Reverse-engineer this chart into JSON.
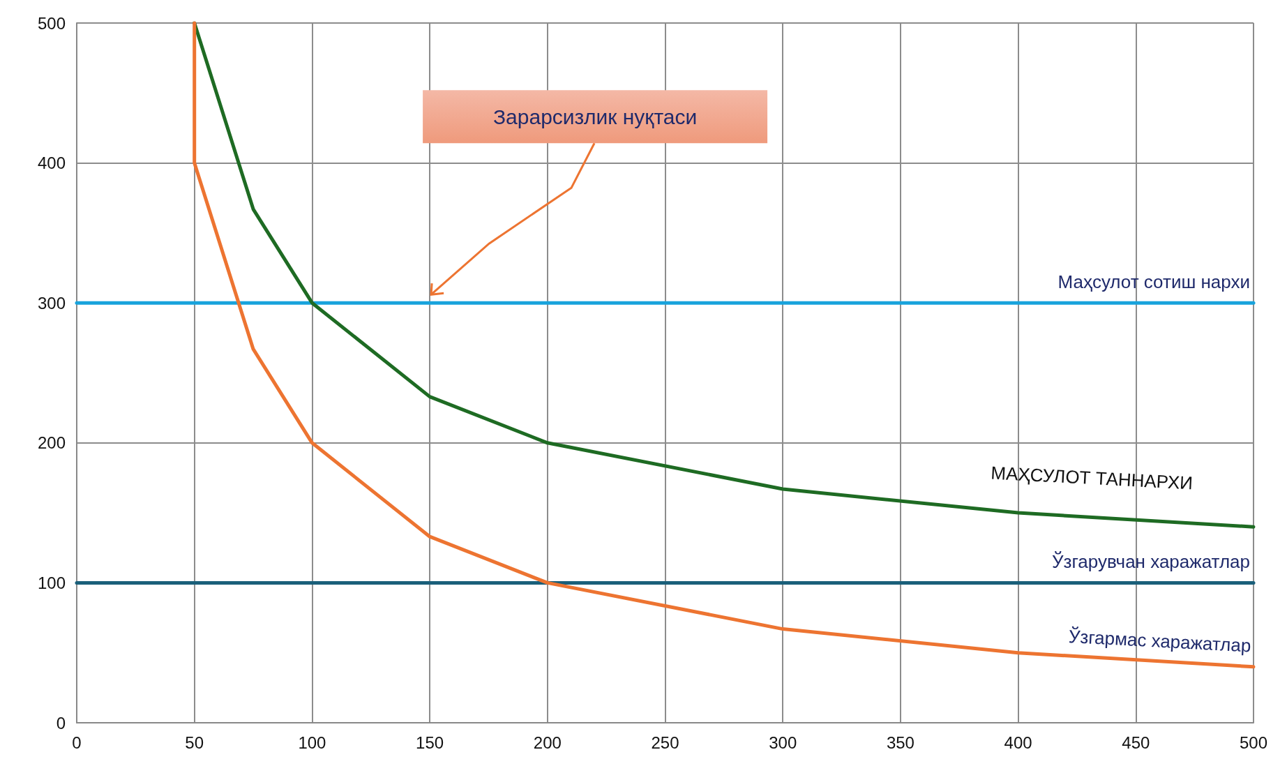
{
  "chart_data": {
    "type": "line",
    "xlim": [
      0,
      500
    ],
    "xticks": [
      0,
      50,
      100,
      150,
      200,
      250,
      300,
      350,
      400,
      450,
      500
    ],
    "ylim": [
      0,
      500
    ],
    "yticks": [
      0,
      100,
      200,
      300,
      400,
      500
    ],
    "grid": true,
    "marker": "none",
    "line_style": "solid",
    "series": [
      {
        "name": "Маҳсулот сотиш нархи",
        "color": "#18a3dc",
        "x": [
          0,
          500
        ],
        "values": [
          300,
          300
        ]
      },
      {
        "name": "Ўзгарувчан харажатлар",
        "color": "#1a5f7a",
        "x": [
          0,
          500
        ],
        "values": [
          100,
          100
        ]
      },
      {
        "name": "МАҲСУЛОТ ТАННАРХИ",
        "color": "#1e6b23",
        "x": [
          50,
          75,
          100,
          150,
          200,
          300,
          400,
          500
        ],
        "values": [
          500,
          367,
          300,
          233,
          200,
          167,
          150,
          140
        ]
      },
      {
        "name": "Ўзгармас харажатлар",
        "color": "#ed7431",
        "x": [
          50,
          50,
          75,
          100,
          150,
          200,
          300,
          400,
          500
        ],
        "values": [
          500,
          400,
          267,
          200,
          133,
          100,
          67,
          50,
          40
        ]
      }
    ],
    "annotations": [
      "Зарарсизлик нуқтаси"
    ]
  }
}
